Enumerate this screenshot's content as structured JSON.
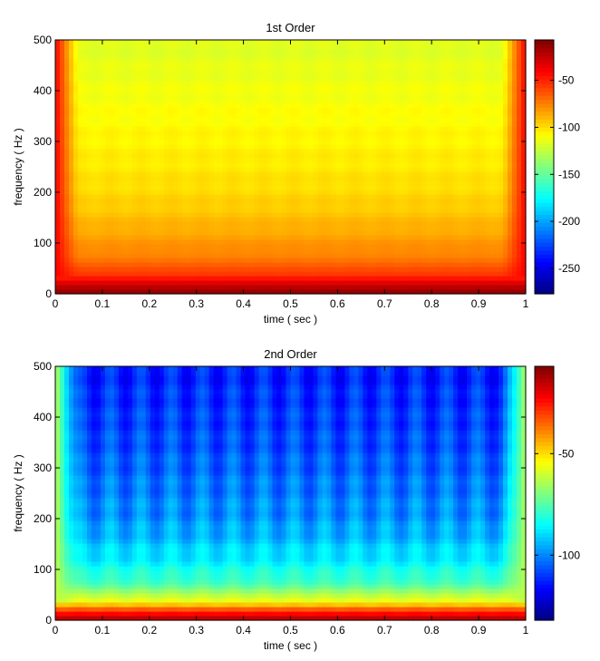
{
  "chart_data": [
    {
      "type": "heatmap",
      "title": "1st Order",
      "xlabel": "time ( sec )",
      "ylabel": "frequency ( Hz )",
      "xlim": [
        0,
        1
      ],
      "ylim": [
        0,
        500
      ],
      "xticks": [
        "0",
        "0.1",
        "0.2",
        "0.3",
        "0.4",
        "0.5",
        "0.6",
        "0.7",
        "0.8",
        "0.9",
        "1"
      ],
      "yticks": [
        "0",
        "100",
        "200",
        "300",
        "400",
        "500"
      ],
      "colorbar": {
        "clim": [
          -277,
          -7
        ],
        "ticks": [
          -50,
          -100,
          -150,
          -200,
          -250
        ],
        "tick_labels": [
          "-50",
          "-100",
          "-150",
          "-200",
          "-250"
        ]
      },
      "frequency_bins": [
        0,
        20,
        40,
        60,
        80,
        100,
        125,
        150,
        175,
        200,
        250,
        300,
        350,
        400,
        450,
        500
      ],
      "level_by_frequency": [
        -10,
        -30,
        -55,
        -68,
        -75,
        -80,
        -85,
        -90,
        -94,
        -97,
        -101,
        -104,
        -107,
        -110,
        -113,
        -116
      ],
      "edge_times": [
        0.03,
        0.97
      ],
      "edge_level": -40,
      "stripe_period_sec": 0.065,
      "stripe_depth": 3
    },
    {
      "type": "heatmap",
      "title": "2nd Order",
      "xlabel": "time ( sec )",
      "ylabel": "frequency ( Hz )",
      "xlim": [
        0,
        1
      ],
      "ylim": [
        0,
        500
      ],
      "xticks": [
        "0",
        "0.1",
        "0.2",
        "0.3",
        "0.4",
        "0.5",
        "0.6",
        "0.7",
        "0.8",
        "0.9",
        "1"
      ],
      "yticks": [
        "0",
        "100",
        "200",
        "300",
        "400",
        "500"
      ],
      "colorbar": {
        "clim": [
          -132,
          -7
        ],
        "ticks": [
          -50,
          -100
        ],
        "tick_labels": [
          "-50",
          "-100"
        ]
      },
      "frequency_bins": [
        0,
        20,
        40,
        60,
        80,
        100,
        125,
        150,
        175,
        200,
        250,
        300,
        350,
        400,
        450,
        500
      ],
      "level_by_frequency": [
        -12,
        -30,
        -55,
        -68,
        -75,
        -80,
        -84,
        -87,
        -90,
        -92,
        -95,
        -98,
        -101,
        -103,
        -105,
        -107
      ],
      "edge_times": [
        0.03,
        0.97
      ],
      "edge_level": -62,
      "stripe_period_sec": 0.065,
      "stripe_depth": 12
    }
  ]
}
